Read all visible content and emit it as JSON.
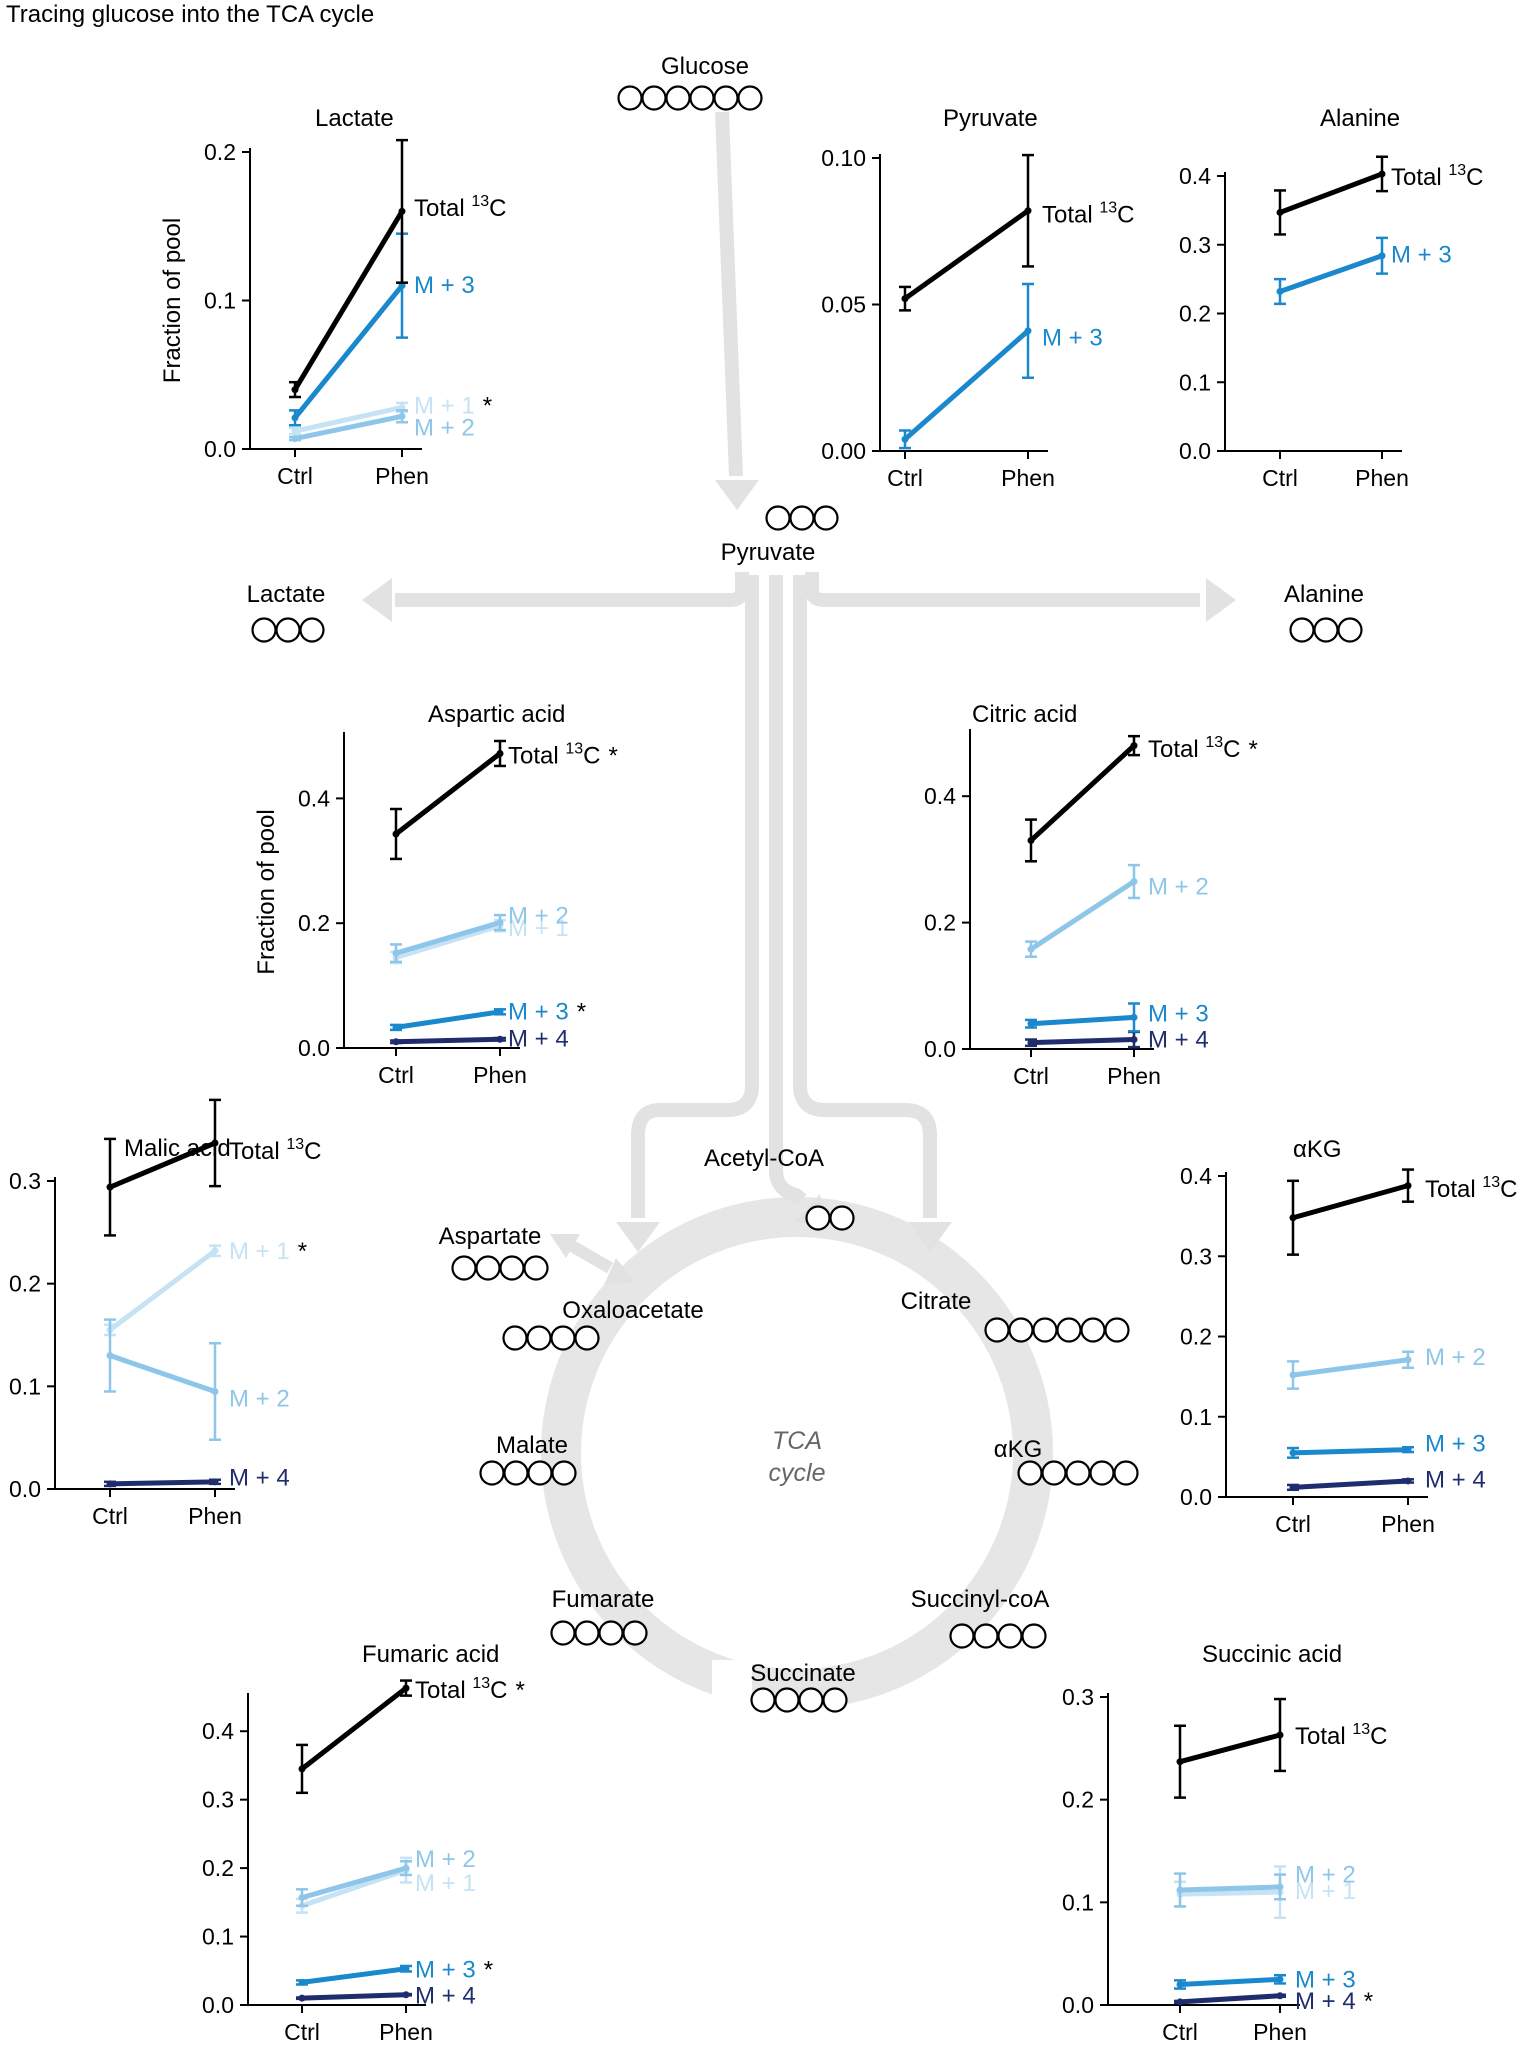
{
  "title": "Tracing glucose into the TCA cycle",
  "colors": {
    "total": "#000000",
    "m1": "#c6e2f5",
    "m2": "#8ec6ea",
    "m3": "#1a88cc",
    "m4": "#1f2d6e",
    "arrow": "#e2e2e2",
    "ring": "#e6e6e6"
  },
  "pathway": {
    "glucose": "Glucose",
    "pyruvate": "Pyruvate",
    "lactate": "Lactate",
    "alanine": "Alanine",
    "acetyl_coa": "Acetyl-CoA",
    "aspartate": "Aspartate",
    "oxaloacetate": "Oxaloacetate",
    "citrate": "Citrate",
    "malate": "Malate",
    "akg": "αKG",
    "fumarate": "Fumarate",
    "succinyl_coa": "Succinyl-coA",
    "succinate": "Succinate",
    "cycle_line1": "TCA",
    "cycle_line2": "cycle"
  },
  "chart_data": [
    {
      "id": "lactate",
      "type": "line",
      "title": "Lactate",
      "ylabel": "Fraction of pool",
      "categories": [
        "Ctrl",
        "Phen"
      ],
      "ylim": [
        0,
        0.2
      ],
      "yticks": [
        "0.0",
        "0.1",
        "0.2"
      ],
      "series": [
        {
          "name": "Total 13C",
          "color": "total",
          "values": [
            0.04,
            0.16
          ],
          "err": [
            0.005,
            0.048
          ]
        },
        {
          "name": "M + 3",
          "color": "m3",
          "values": [
            0.021,
            0.11
          ],
          "err": [
            0.005,
            0.035
          ]
        },
        {
          "name": "M + 1",
          "color": "m1",
          "values": [
            0.012,
            0.028
          ],
          "err": [
            0.002,
            0.003
          ],
          "sig": "*"
        },
        {
          "name": "M + 2",
          "color": "m2",
          "values": [
            0.007,
            0.022
          ],
          "err": [
            0.001,
            0.004
          ]
        }
      ]
    },
    {
      "id": "pyruvate",
      "type": "line",
      "title": "Pyruvate",
      "ylabel": "",
      "categories": [
        "Ctrl",
        "Phen"
      ],
      "ylim": [
        0,
        0.1
      ],
      "yticks": [
        "0.00",
        "0.05",
        "0.10"
      ],
      "series": [
        {
          "name": "Total 13C",
          "color": "total",
          "values": [
            0.052,
            0.082
          ],
          "err": [
            0.004,
            0.019
          ]
        },
        {
          "name": "M + 3",
          "color": "m3",
          "values": [
            0.004,
            0.041
          ],
          "err": [
            0.003,
            0.016
          ]
        }
      ]
    },
    {
      "id": "alanine",
      "type": "line",
      "title": "Alanine",
      "ylabel": "",
      "categories": [
        "Ctrl",
        "Phen"
      ],
      "ylim": [
        0,
        0.4
      ],
      "yticks": [
        "0.0",
        "0.1",
        "0.2",
        "0.3",
        "0.4"
      ],
      "series": [
        {
          "name": "Total 13C",
          "color": "total",
          "values": [
            0.347,
            0.403
          ],
          "err": [
            0.032,
            0.025
          ]
        },
        {
          "name": "M + 3",
          "color": "m3",
          "values": [
            0.232,
            0.284
          ],
          "err": [
            0.018,
            0.026
          ]
        }
      ]
    },
    {
      "id": "aspartic",
      "type": "line",
      "title": "Aspartic acid",
      "ylabel": "Fraction of pool",
      "categories": [
        "Ctrl",
        "Phen"
      ],
      "ylim": [
        0,
        0.5
      ],
      "yticks": [
        "0.0",
        "0.2",
        "0.4"
      ],
      "series": [
        {
          "name": "Total 13C",
          "color": "total",
          "values": [
            0.343,
            0.472
          ],
          "err": [
            0.04,
            0.02
          ],
          "sig": "*"
        },
        {
          "name": "M + 2",
          "color": "m2",
          "values": [
            0.152,
            0.201
          ],
          "err": [
            0.014,
            0.012
          ]
        },
        {
          "name": "M + 1",
          "color": "m1",
          "values": [
            0.145,
            0.196
          ],
          "err": [
            0.009,
            0.009
          ]
        },
        {
          "name": "M + 3",
          "color": "m3",
          "values": [
            0.033,
            0.058
          ],
          "err": [
            0.004,
            0.004
          ],
          "sig": "*"
        },
        {
          "name": "M + 4",
          "color": "m4",
          "values": [
            0.01,
            0.014
          ],
          "err": [
            0.002,
            0.002
          ]
        }
      ]
    },
    {
      "id": "citric",
      "type": "line",
      "title": "Citric acid",
      "ylabel": "",
      "categories": [
        "Ctrl",
        "Phen"
      ],
      "ylim": [
        0,
        0.5
      ],
      "yticks": [
        "0.0",
        "0.2",
        "0.4"
      ],
      "series": [
        {
          "name": "Total 13C",
          "color": "total",
          "values": [
            0.33,
            0.48
          ],
          "err": [
            0.033,
            0.015
          ],
          "sig": "*"
        },
        {
          "name": "M + 2",
          "color": "m2",
          "values": [
            0.158,
            0.265
          ],
          "err": [
            0.012,
            0.026
          ]
        },
        {
          "name": "M + 3",
          "color": "m3",
          "values": [
            0.04,
            0.05
          ],
          "err": [
            0.006,
            0.022
          ]
        },
        {
          "name": "M + 4",
          "color": "m4",
          "values": [
            0.01,
            0.015
          ],
          "err": [
            0.005,
            0.012
          ]
        }
      ]
    },
    {
      "id": "malic",
      "type": "line",
      "title": "Malic acid",
      "ylabel": "",
      "categories": [
        "Ctrl",
        "Phen"
      ],
      "ylim": [
        0,
        0.3
      ],
      "yticks": [
        "0.0",
        "0.1",
        "0.2",
        "0.3"
      ],
      "series": [
        {
          "name": "Total 13C",
          "color": "total",
          "values": [
            0.294,
            0.337
          ],
          "err": [
            0.047,
            0.042
          ]
        },
        {
          "name": "M + 1",
          "color": "m1",
          "values": [
            0.155,
            0.232
          ],
          "err": [
            0.005,
            0.005
          ],
          "sig": "*"
        },
        {
          "name": "M + 2",
          "color": "m2",
          "values": [
            0.13,
            0.095
          ],
          "err": [
            0.035,
            0.047
          ]
        },
        {
          "name": "M + 4",
          "color": "m4",
          "values": [
            0.005,
            0.007
          ],
          "err": [
            0.002,
            0.002
          ]
        }
      ]
    },
    {
      "id": "akg",
      "type": "line",
      "title": "αKG",
      "ylabel": "",
      "categories": [
        "Ctrl",
        "Phen"
      ],
      "ylim": [
        0,
        0.4
      ],
      "yticks": [
        "0.0",
        "0.1",
        "0.2",
        "0.3",
        "0.4"
      ],
      "series": [
        {
          "name": "Total 13C",
          "color": "total",
          "values": [
            0.348,
            0.388
          ],
          "err": [
            0.046,
            0.02
          ]
        },
        {
          "name": "M + 2",
          "color": "m2",
          "values": [
            0.152,
            0.171
          ],
          "err": [
            0.017,
            0.01
          ]
        },
        {
          "name": "M + 3",
          "color": "m3",
          "values": [
            0.055,
            0.059
          ],
          "err": [
            0.006,
            0.003
          ]
        },
        {
          "name": "M + 4",
          "color": "m4",
          "values": [
            0.012,
            0.02
          ],
          "err": [
            0.003,
            0.002
          ]
        }
      ]
    },
    {
      "id": "fumaric",
      "type": "line",
      "title": "Fumaric acid",
      "ylabel": "",
      "categories": [
        "Ctrl",
        "Phen"
      ],
      "ylim": [
        0,
        0.45
      ],
      "yticks": [
        "0.0",
        "0.1",
        "0.2",
        "0.3",
        "0.4"
      ],
      "series": [
        {
          "name": "Total 13C",
          "color": "total",
          "values": [
            0.345,
            0.463
          ],
          "err": [
            0.035,
            0.011
          ],
          "sig": "*"
        },
        {
          "name": "M + 2",
          "color": "m2",
          "values": [
            0.157,
            0.2
          ],
          "err": [
            0.012,
            0.01
          ]
        },
        {
          "name": "M + 1",
          "color": "m1",
          "values": [
            0.145,
            0.197
          ],
          "err": [
            0.01,
            0.018
          ]
        },
        {
          "name": "M + 3",
          "color": "m3",
          "values": [
            0.033,
            0.053
          ],
          "err": [
            0.003,
            0.004
          ],
          "sig": "*"
        },
        {
          "name": "M + 4",
          "color": "m4",
          "values": [
            0.01,
            0.015
          ],
          "err": [
            0.001,
            0.001
          ]
        }
      ]
    },
    {
      "id": "succinic",
      "type": "line",
      "title": "Succinic acid",
      "ylabel": "",
      "categories": [
        "Ctrl",
        "Phen"
      ],
      "ylim": [
        0,
        0.3
      ],
      "yticks": [
        "0.0",
        "0.1",
        "0.2",
        "0.3"
      ],
      "series": [
        {
          "name": "Total 13C",
          "color": "total",
          "values": [
            0.237,
            0.263
          ],
          "err": [
            0.035,
            0.035
          ]
        },
        {
          "name": "M + 2",
          "color": "m2",
          "values": [
            0.112,
            0.115
          ],
          "err": [
            0.016,
            0.012
          ]
        },
        {
          "name": "M + 1",
          "color": "m1",
          "values": [
            0.108,
            0.11
          ],
          "err": [
            0.012,
            0.025
          ]
        },
        {
          "name": "M + 3",
          "color": "m3",
          "values": [
            0.02,
            0.025
          ],
          "err": [
            0.004,
            0.004
          ]
        },
        {
          "name": "M + 4",
          "color": "m4",
          "values": [
            0.003,
            0.009
          ],
          "err": [
            0.001,
            0.001
          ],
          "sig": "*"
        }
      ]
    }
  ]
}
